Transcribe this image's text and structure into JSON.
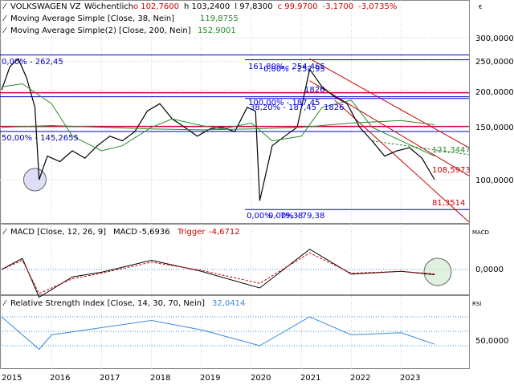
{
  "header": {
    "instrument": "VOLKSWAGEN VZ",
    "period": "Wöchentlich",
    "ohlc": [
      {
        "key": "o",
        "value": "102,7600",
        "color": "#cc0000"
      },
      {
        "key": "h",
        "value": "103,2400",
        "color": "#000000"
      },
      {
        "key": "l",
        "value": "97,8300",
        "color": "#000000"
      },
      {
        "key": "c",
        "value": "99,9700",
        "color": "#cc0000"
      }
    ],
    "change": "-3,1700",
    "change_pct": "-3,0735%",
    "currency_symbol": "€"
  },
  "indicators": [
    {
      "label": "Moving Average Simple [Close, 38, Nein]",
      "value": "119,8755",
      "color": "#2a8a2a"
    },
    {
      "label": "Moving Average Simple(2) [Close, 200, Nein]",
      "value": "152,9001",
      "color": "#2a8a2a"
    }
  ],
  "price_axis": {
    "ticks": [
      "300,0000",
      "250,0000",
      "200,0000",
      "150,0000",
      "100,0000"
    ]
  },
  "fib_labels": [
    {
      "text": "0,00% - 262,45",
      "color": "#0000cc"
    },
    {
      "text": "50,00% - 145,2655",
      "color": "#0000cc"
    },
    {
      "text": "161,80% - 254,465",
      "color": "#0000cc"
    },
    {
      "text": "0,00% - 252,95",
      "color": "#0000cc"
    },
    {
      "text": "100,00% - 187,45",
      "color": "#0000cc"
    },
    {
      "text": "38,20% - 187,45",
      "color": "#0000cc"
    },
    {
      "text": "0,00% - 79,38",
      "color": "#0000cc"
    },
    {
      "text": "0,00% - 79,38",
      "color": "#0000cc"
    },
    {
      "text": "1826",
      "color": "#0000cc"
    },
    {
      "text": "1826",
      "color": "#0000cc"
    }
  ],
  "channel_labels": [
    {
      "text": "121,3447",
      "color": "#2a8a2a"
    },
    {
      "text": "108,5973",
      "color": "#cc0000"
    },
    {
      "text": "81,3514",
      "color": "#cc0000"
    }
  ],
  "macd": {
    "title": "MACD [Close, 12, 26, 9]",
    "macd_label": "MACD",
    "macd_value": "-5,6936",
    "trigger_label": "Trigger",
    "trigger_value": "-4,6712",
    "axis_title": "MACD",
    "tick": "0,0000"
  },
  "rsi": {
    "title": "Relative Strength Index [Close, 14, 30, 70, Nein]",
    "value": "32,0414",
    "axis_title": "RSI",
    "tick": "50,0000"
  },
  "x_axis": {
    "years": [
      "2015",
      "2016",
      "2017",
      "2018",
      "2019",
      "2020",
      "2021",
      "2022",
      "2023"
    ]
  },
  "colors": {
    "price": "#000000",
    "ma": "#2a8a2a",
    "fib": "#0000cc",
    "hline": "#cc0044",
    "channel": "#cc0000",
    "macd": "#000000",
    "trigger": "#cc0000",
    "rsi": "#3a8ad8",
    "band": "#3a8ad8"
  },
  "chart_data": [
    {
      "type": "line",
      "title": "",
      "y_scale": "log",
      "ylim": [
        75,
        320
      ],
      "x_range": [
        "2015",
        "2023-09"
      ],
      "series": [
        {
          "name": "Close",
          "x": [
            "2015-01",
            "2015-03",
            "2015-05",
            "2015-07",
            "2015-09",
            "2015-10",
            "2015-12",
            "2016-03",
            "2016-06",
            "2016-09",
            "2016-12",
            "2017-03",
            "2017-06",
            "2017-09",
            "2017-12",
            "2018-03",
            "2018-06",
            "2018-09",
            "2018-12",
            "2019-03",
            "2019-06",
            "2019-09",
            "2019-12",
            "2020-02",
            "2020-03",
            "2020-06",
            "2020-09",
            "2020-12",
            "2021-03",
            "2021-06",
            "2021-09",
            "2021-12",
            "2022-03",
            "2022-06",
            "2022-09",
            "2022-12",
            "2023-03",
            "2023-06",
            "2023-09"
          ],
          "values": [
            200,
            240,
            255,
            220,
            175,
            100,
            120,
            115,
            125,
            118,
            130,
            140,
            135,
            145,
            170,
            180,
            160,
            150,
            140,
            148,
            150,
            145,
            175,
            170,
            85,
            130,
            140,
            150,
            235,
            205,
            190,
            180,
            150,
            135,
            120,
            125,
            128,
            118,
            100
          ]
        },
        {
          "name": "Moving Average Simple [Close, 38, Nein]",
          "x": [
            "2015-01",
            "2015-06",
            "2016-01",
            "2016-06",
            "2017-01",
            "2017-06",
            "2018-01",
            "2018-06",
            "2019-01",
            "2019-06",
            "2020-01",
            "2020-06",
            "2021-01",
            "2021-06",
            "2022-01",
            "2022-06",
            "2023-01",
            "2023-09"
          ],
          "values": [
            205,
            210,
            180,
            140,
            125,
            130,
            150,
            160,
            152,
            148,
            155,
            135,
            140,
            175,
            185,
            150,
            135,
            120
          ]
        },
        {
          "name": "Moving Average Simple(2) [Close, 200, Nein]",
          "x": [
            "2015-01",
            "2016-01",
            "2017-01",
            "2018-01",
            "2019-01",
            "2020-01",
            "2021-01",
            "2022-01",
            "2023-01",
            "2023-09"
          ],
          "values": [
            150,
            152,
            150,
            148,
            147,
            148,
            150,
            155,
            158,
            153
          ]
        }
      ],
      "annotations": [
        "0,00% - 262,45",
        "50,00% - 145,2655",
        "161,80% - 254,465",
        "0,00% - 252,95",
        "100,00% - 187,45",
        "38,20% - 187,45",
        "0,00% - 79,38",
        "121,3447",
        "108,5973",
        "81,3514"
      ]
    },
    {
      "type": "line",
      "title": "MACD [Close, 12, 26, 9]",
      "ylim": [
        -40,
        25
      ],
      "series": [
        {
          "name": "MACD",
          "x": [
            "2015",
            "2015-06",
            "2015-10",
            "2016-06",
            "2017",
            "2018",
            "2019",
            "2020-03",
            "2021-03",
            "2022",
            "2023",
            "2023-09"
          ],
          "values": [
            0,
            12,
            -30,
            -8,
            -3,
            10,
            -2,
            -20,
            22,
            -5,
            -2,
            -5.6936
          ]
        },
        {
          "name": "Trigger",
          "x": [
            "2015",
            "2015-06",
            "2015-10",
            "2016-06",
            "2017",
            "2018",
            "2019",
            "2020-03",
            "2021-03",
            "2022",
            "2023",
            "2023-09"
          ],
          "values": [
            0,
            10,
            -26,
            -10,
            -4,
            8,
            -1,
            -15,
            18,
            -4,
            -2,
            -4.6712
          ]
        }
      ]
    },
    {
      "type": "line",
      "title": "Relative Strength Index [Close, 14, 30, 70, Nein]",
      "ylim": [
        0,
        100
      ],
      "series": [
        {
          "name": "RSI",
          "x": [
            "2015",
            "2015-10",
            "2016",
            "2017",
            "2018",
            "2019",
            "2020-03",
            "2021-03",
            "2022",
            "2023",
            "2023-09"
          ],
          "values": [
            70,
            25,
            45,
            55,
            65,
            52,
            30,
            70,
            45,
            48,
            32.0414
          ]
        }
      ]
    }
  ]
}
